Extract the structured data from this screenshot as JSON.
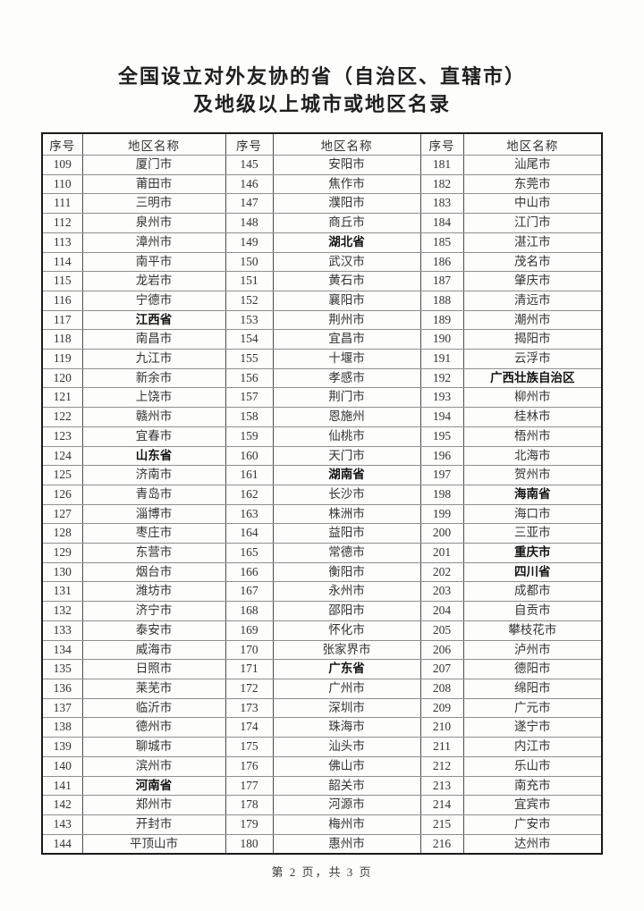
{
  "page": {
    "title_line1": "全国设立对外友协的省（自治区、直辖市）",
    "title_line2": "及地级以上城市或地区名录",
    "footer": "第 2 页，共 3 页"
  },
  "colors": {
    "page_bg": "#fdfdfc",
    "text": "#2b2b2b",
    "outer_border": "#1a1a1a",
    "inner_border_horizontal": "#8f8f8f",
    "inner_border_vertical": "#4d4d4d"
  },
  "table": {
    "headers": [
      "序号",
      "地区名称",
      "序号",
      "地区名称",
      "序号",
      "地区名称"
    ],
    "columns": [
      {
        "entries": [
          {
            "no": "109",
            "name": "厦门市"
          },
          {
            "no": "110",
            "name": "莆田市"
          },
          {
            "no": "111",
            "name": "三明市"
          },
          {
            "no": "112",
            "name": "泉州市"
          },
          {
            "no": "113",
            "name": "漳州市"
          },
          {
            "no": "114",
            "name": "南平市"
          },
          {
            "no": "115",
            "name": "龙岩市"
          },
          {
            "no": "116",
            "name": "宁德市"
          },
          {
            "no": "117",
            "name": "江西省",
            "bold": true
          },
          {
            "no": "118",
            "name": "南昌市"
          },
          {
            "no": "119",
            "name": "九江市"
          },
          {
            "no": "120",
            "name": "新余市"
          },
          {
            "no": "121",
            "name": "上饶市"
          },
          {
            "no": "122",
            "name": "赣州市"
          },
          {
            "no": "123",
            "name": "宜春市"
          },
          {
            "no": "124",
            "name": "山东省",
            "bold": true
          },
          {
            "no": "125",
            "name": "济南市"
          },
          {
            "no": "126",
            "name": "青岛市"
          },
          {
            "no": "127",
            "name": "淄博市"
          },
          {
            "no": "128",
            "name": "枣庄市"
          },
          {
            "no": "129",
            "name": "东营市"
          },
          {
            "no": "130",
            "name": "烟台市"
          },
          {
            "no": "131",
            "name": "潍坊市"
          },
          {
            "no": "132",
            "name": "济宁市"
          },
          {
            "no": "133",
            "name": "泰安市"
          },
          {
            "no": "134",
            "name": "威海市"
          },
          {
            "no": "135",
            "name": "日照市"
          },
          {
            "no": "136",
            "name": "莱芜市"
          },
          {
            "no": "137",
            "name": "临沂市"
          },
          {
            "no": "138",
            "name": "德州市"
          },
          {
            "no": "139",
            "name": "聊城市"
          },
          {
            "no": "140",
            "name": "滨州市"
          },
          {
            "no": "141",
            "name": "河南省",
            "bold": true
          },
          {
            "no": "142",
            "name": "郑州市"
          },
          {
            "no": "143",
            "name": "开封市"
          },
          {
            "no": "144",
            "name": "平顶山市"
          }
        ]
      },
      {
        "entries": [
          {
            "no": "145",
            "name": "安阳市"
          },
          {
            "no": "146",
            "name": "焦作市"
          },
          {
            "no": "147",
            "name": "濮阳市"
          },
          {
            "no": "148",
            "name": "商丘市"
          },
          {
            "no": "149",
            "name": "湖北省",
            "bold": true
          },
          {
            "no": "150",
            "name": "武汉市"
          },
          {
            "no": "151",
            "name": "黄石市"
          },
          {
            "no": "152",
            "name": "襄阳市"
          },
          {
            "no": "153",
            "name": "荆州市"
          },
          {
            "no": "154",
            "name": "宜昌市"
          },
          {
            "no": "155",
            "name": "十堰市"
          },
          {
            "no": "156",
            "name": "孝感市"
          },
          {
            "no": "157",
            "name": "荆门市"
          },
          {
            "no": "158",
            "name": "恩施州"
          },
          {
            "no": "159",
            "name": "仙桃市"
          },
          {
            "no": "160",
            "name": "天门市"
          },
          {
            "no": "161",
            "name": "湖南省",
            "bold": true
          },
          {
            "no": "162",
            "name": "长沙市"
          },
          {
            "no": "163",
            "name": "株洲市"
          },
          {
            "no": "164",
            "name": "益阳市"
          },
          {
            "no": "165",
            "name": "常德市"
          },
          {
            "no": "166",
            "name": "衡阳市"
          },
          {
            "no": "167",
            "name": "永州市"
          },
          {
            "no": "168",
            "name": "邵阳市"
          },
          {
            "no": "169",
            "name": "怀化市"
          },
          {
            "no": "170",
            "name": "张家界市"
          },
          {
            "no": "171",
            "name": "广东省",
            "bold": true
          },
          {
            "no": "172",
            "name": "广州市"
          },
          {
            "no": "173",
            "name": "深圳市"
          },
          {
            "no": "174",
            "name": "珠海市"
          },
          {
            "no": "175",
            "name": "汕头市"
          },
          {
            "no": "176",
            "name": "佛山市"
          },
          {
            "no": "177",
            "name": "韶关市"
          },
          {
            "no": "178",
            "name": "河源市"
          },
          {
            "no": "179",
            "name": "梅州市"
          },
          {
            "no": "180",
            "name": "惠州市"
          }
        ]
      },
      {
        "entries": [
          {
            "no": "181",
            "name": "汕尾市"
          },
          {
            "no": "182",
            "name": "东莞市"
          },
          {
            "no": "183",
            "name": "中山市"
          },
          {
            "no": "184",
            "name": "江门市"
          },
          {
            "no": "185",
            "name": "湛江市"
          },
          {
            "no": "186",
            "name": "茂名市"
          },
          {
            "no": "187",
            "name": "肇庆市"
          },
          {
            "no": "188",
            "name": "清远市"
          },
          {
            "no": "189",
            "name": "潮州市"
          },
          {
            "no": "190",
            "name": "揭阳市"
          },
          {
            "no": "191",
            "name": "云浮市"
          },
          {
            "no": "192",
            "name": "广西壮族自治区",
            "bold": true
          },
          {
            "no": "193",
            "name": "柳州市"
          },
          {
            "no": "194",
            "name": "桂林市"
          },
          {
            "no": "195",
            "name": "梧州市"
          },
          {
            "no": "196",
            "name": "北海市"
          },
          {
            "no": "197",
            "name": "贺州市"
          },
          {
            "no": "198",
            "name": "海南省",
            "bold": true
          },
          {
            "no": "199",
            "name": "海口市"
          },
          {
            "no": "200",
            "name": "三亚市"
          },
          {
            "no": "201",
            "name": "重庆市",
            "bold": true
          },
          {
            "no": "202",
            "name": "四川省",
            "bold": true
          },
          {
            "no": "203",
            "name": "成都市"
          },
          {
            "no": "204",
            "name": "自贡市"
          },
          {
            "no": "205",
            "name": "攀枝花市"
          },
          {
            "no": "206",
            "name": "泸州市"
          },
          {
            "no": "207",
            "name": "德阳市"
          },
          {
            "no": "208",
            "name": "绵阳市"
          },
          {
            "no": "209",
            "name": "广元市"
          },
          {
            "no": "210",
            "name": "遂宁市"
          },
          {
            "no": "211",
            "name": "内江市"
          },
          {
            "no": "212",
            "name": "乐山市"
          },
          {
            "no": "213",
            "name": "南充市"
          },
          {
            "no": "214",
            "name": "宜宾市"
          },
          {
            "no": "215",
            "name": "广安市"
          },
          {
            "no": "216",
            "name": "达州市"
          }
        ]
      }
    ]
  }
}
